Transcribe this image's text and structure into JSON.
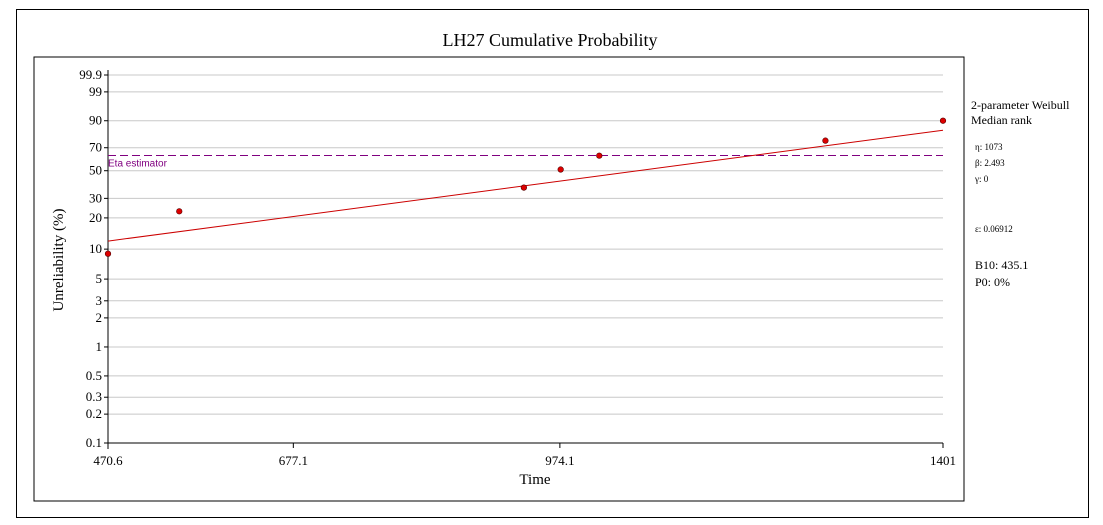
{
  "chart_data": {
    "type": "scatter",
    "title": "LH27 Cumulative Probability",
    "xlabel": "Time",
    "ylabel": "Unreliability (%)",
    "xlim": [
      470.6,
      1401
    ],
    "ylim": [
      0.1,
      99.9
    ],
    "y_scale": "weibull",
    "grid": true,
    "x_ticks": [
      "470.6",
      "677.1",
      "974.1",
      "1401"
    ],
    "y_ticks": [
      "0.1",
      "0.2",
      "0.3",
      "0.5",
      "1",
      "2",
      "3",
      "5",
      "10",
      "20",
      "30",
      "50",
      "70",
      "90",
      "99",
      "99.9"
    ],
    "series": [
      {
        "points": [
          {
            "x": 470.6,
            "y": 9.0
          },
          {
            "x": 550,
            "y": 23.0
          },
          {
            "x": 934,
            "y": 37.0
          },
          {
            "x": 975,
            "y": 51.0
          },
          {
            "x": 1018,
            "y": 63.0
          },
          {
            "x": 1270,
            "y": 76.0
          },
          {
            "x": 1401,
            "y": 90.0
          }
        ]
      }
    ],
    "fit_line": [
      {
        "x": 470.6,
        "y": 12.0
      },
      {
        "x": 1401,
        "y": 84.0
      }
    ],
    "reference_line": {
      "y": 63.2,
      "label": "Eta estimator"
    },
    "colors": {
      "points": "#dd0000",
      "fit": "#cc0000",
      "reference": "#800080",
      "grid": "#c8c8c8"
    }
  },
  "side_panel": {
    "model": "2-parameter Weibull",
    "method": "Median rank",
    "eta": "η: 1073",
    "beta": "β: 2.493",
    "gamma": "γ: 0",
    "rho": "ε: 0.06912",
    "b10": "B10: 435.1",
    "p0": "P0: 0%"
  }
}
